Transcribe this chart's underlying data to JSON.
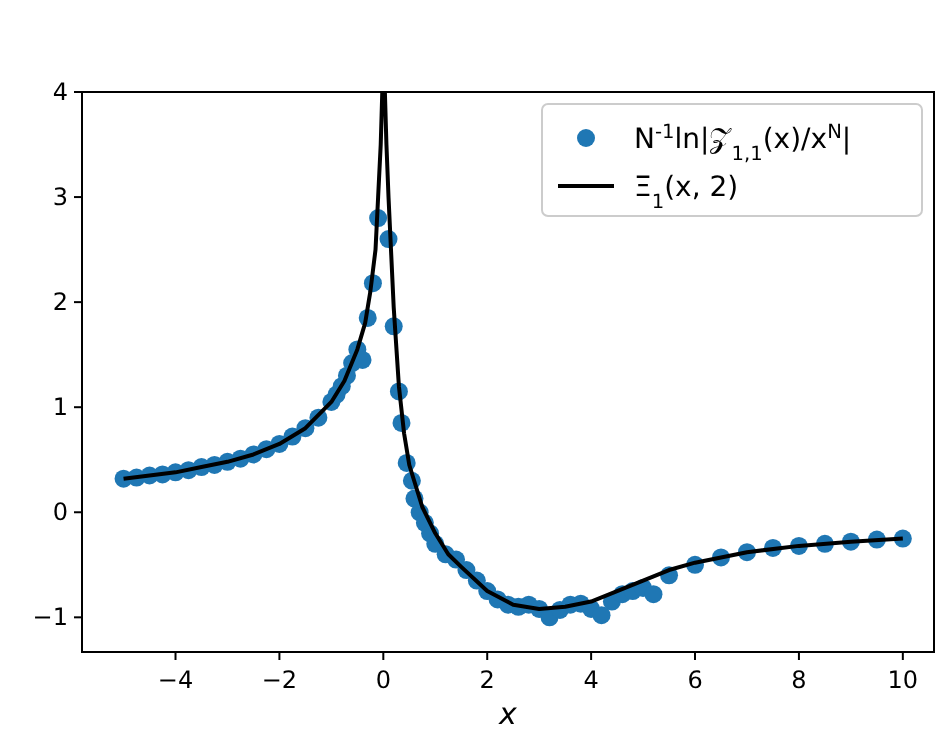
{
  "chart_data": {
    "type": "scatter",
    "xlabel": "x",
    "xlim": [
      -5.8,
      10.6
    ],
    "ylim": [
      -1.33,
      4
    ],
    "xticks": [
      -4,
      -2,
      0,
      2,
      4,
      6,
      8,
      10
    ],
    "yticks": [
      -1,
      0,
      1,
      2,
      3,
      4
    ],
    "grid": false,
    "legend": "top right",
    "series": [
      {
        "name": "N$^{-1}$ln|𝒵$_{1,1}$(x)/x$^{N}$|",
        "marker": "circle",
        "color": "#1f77b4",
        "x": [
          -5,
          -4.75,
          -4.5,
          -4.25,
          -4,
          -3.75,
          -3.5,
          -3.25,
          -3,
          -2.75,
          -2.5,
          -2.25,
          -2,
          -1.75,
          -1.5,
          -1.25,
          -1,
          -0.9,
          -0.8,
          -0.7,
          -0.6,
          -0.5,
          -0.4,
          -0.3,
          -0.2,
          -0.1,
          0.1,
          0.2,
          0.3,
          0.35,
          0.45,
          0.55,
          0.6,
          0.7,
          0.8,
          0.9,
          1.0,
          1.2,
          1.4,
          1.6,
          1.8,
          2.0,
          2.2,
          2.4,
          2.6,
          2.8,
          3.0,
          3.2,
          3.4,
          3.6,
          3.8,
          4.0,
          4.2,
          4.4,
          4.6,
          4.8,
          5.0,
          5.2,
          5.5,
          6,
          6.5,
          7,
          7.5,
          8,
          8.5,
          9,
          9.5,
          10
        ],
        "values": [
          0.32,
          0.33,
          0.35,
          0.36,
          0.38,
          0.4,
          0.43,
          0.45,
          0.48,
          0.51,
          0.55,
          0.6,
          0.65,
          0.72,
          0.8,
          0.9,
          1.05,
          1.12,
          1.2,
          1.3,
          1.42,
          1.55,
          1.45,
          1.85,
          2.18,
          2.8,
          2.6,
          1.77,
          1.15,
          0.85,
          0.47,
          0.3,
          0.13,
          0.0,
          -0.1,
          -0.2,
          -0.3,
          -0.4,
          -0.45,
          -0.55,
          -0.65,
          -0.75,
          -0.83,
          -0.88,
          -0.9,
          -0.88,
          -0.92,
          -1.0,
          -0.93,
          -0.88,
          -0.87,
          -0.92,
          -0.98,
          -0.85,
          -0.78,
          -0.75,
          -0.72,
          -0.78,
          -0.6,
          -0.5,
          -0.43,
          -0.38,
          -0.34,
          -0.32,
          -0.3,
          -0.28,
          -0.26,
          -0.25
        ]
      },
      {
        "name": "Ξ$_{1}$(x, 2)",
        "type": "line",
        "marker": "none",
        "line_style": "solid",
        "color": "#000000",
        "x": [
          -5,
          -4.5,
          -4,
          -3.5,
          -3,
          -2.5,
          -2,
          -1.5,
          -1,
          -0.75,
          -0.5,
          -0.35,
          -0.25,
          -0.15,
          -0.1,
          -0.05,
          -0.02,
          0.03,
          0.06,
          0.1,
          0.2,
          0.3,
          0.4,
          0.5,
          0.75,
          1,
          1.25,
          1.5,
          2,
          2.5,
          3,
          3.5,
          4,
          4.5,
          5,
          5.5,
          6,
          7,
          8,
          9,
          10
        ],
        "values": [
          0.32,
          0.35,
          0.38,
          0.43,
          0.48,
          0.55,
          0.65,
          0.8,
          1.05,
          1.25,
          1.55,
          1.8,
          2.1,
          2.5,
          3.0,
          3.5,
          4,
          4,
          3.5,
          3.0,
          1.95,
          1.2,
          0.75,
          0.45,
          0.05,
          -0.2,
          -0.4,
          -0.52,
          -0.75,
          -0.88,
          -0.92,
          -0.9,
          -0.85,
          -0.75,
          -0.65,
          -0.55,
          -0.48,
          -0.38,
          -0.32,
          -0.28,
          -0.25
        ]
      }
    ]
  }
}
